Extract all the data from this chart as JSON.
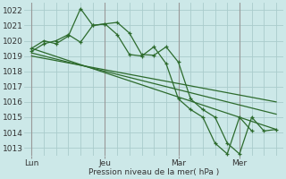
{
  "background_color": "#cce8e8",
  "grid_color": "#aacccc",
  "line_color": "#2d6b2d",
  "ylim": [
    1012.5,
    1022.5
  ],
  "yticks": [
    1013,
    1014,
    1015,
    1016,
    1017,
    1018,
    1019,
    1020,
    1021,
    1022
  ],
  "xlabel": "Pression niveau de la mer( hPa )",
  "xtick_labels": [
    "Lun",
    "Jeu",
    "Mar",
    "Mer"
  ],
  "vline_positions": [
    0,
    3,
    6,
    8.5
  ],
  "xlim": [
    -0.3,
    10.3
  ],
  "series1_x": [
    0,
    0.5,
    1.0,
    1.5,
    2.0,
    2.5,
    3.0,
    3.5,
    4.0,
    4.5,
    5.0,
    5.5,
    6.0,
    6.5,
    7.0,
    7.5,
    8.0,
    8.5,
    9.0,
    9.5,
    10.0
  ],
  "series1_y": [
    1019.3,
    1019.8,
    1020.0,
    1020.4,
    1019.9,
    1021.0,
    1021.1,
    1021.2,
    1020.5,
    1019.1,
    1019.05,
    1019.6,
    1018.6,
    1016.2,
    1015.5,
    1015.0,
    1013.3,
    1012.6,
    1015.0,
    1014.1,
    1014.2
  ],
  "series2_x": [
    0,
    0.5,
    1.0,
    1.5,
    2.0,
    2.5,
    3.0,
    3.5,
    4.0,
    4.5,
    5.0,
    5.5,
    6.0,
    6.5,
    7.0,
    7.5,
    8.0,
    8.5,
    9.0,
    9.5,
    10.0
  ],
  "series2_y": [
    1019.5,
    1020.0,
    1019.8,
    1020.3,
    1022.1,
    1021.0,
    1021.1,
    1020.4,
    1019.1,
    1019.0,
    1019.6,
    1018.5,
    1016.2,
    1015.5,
    1015.0,
    1013.3,
    1012.6,
    1015.0,
    1014.1,
    1014.2,
    1014.1
  ],
  "trend1": [
    1019.5,
    1014.2
  ],
  "trend2": [
    1019.2,
    1015.2
  ],
  "trend3": [
    1019.0,
    1016.0
  ],
  "trend_x": [
    0,
    10.0
  ],
  "xtick_positions": [
    0,
    3,
    6,
    8.5
  ]
}
